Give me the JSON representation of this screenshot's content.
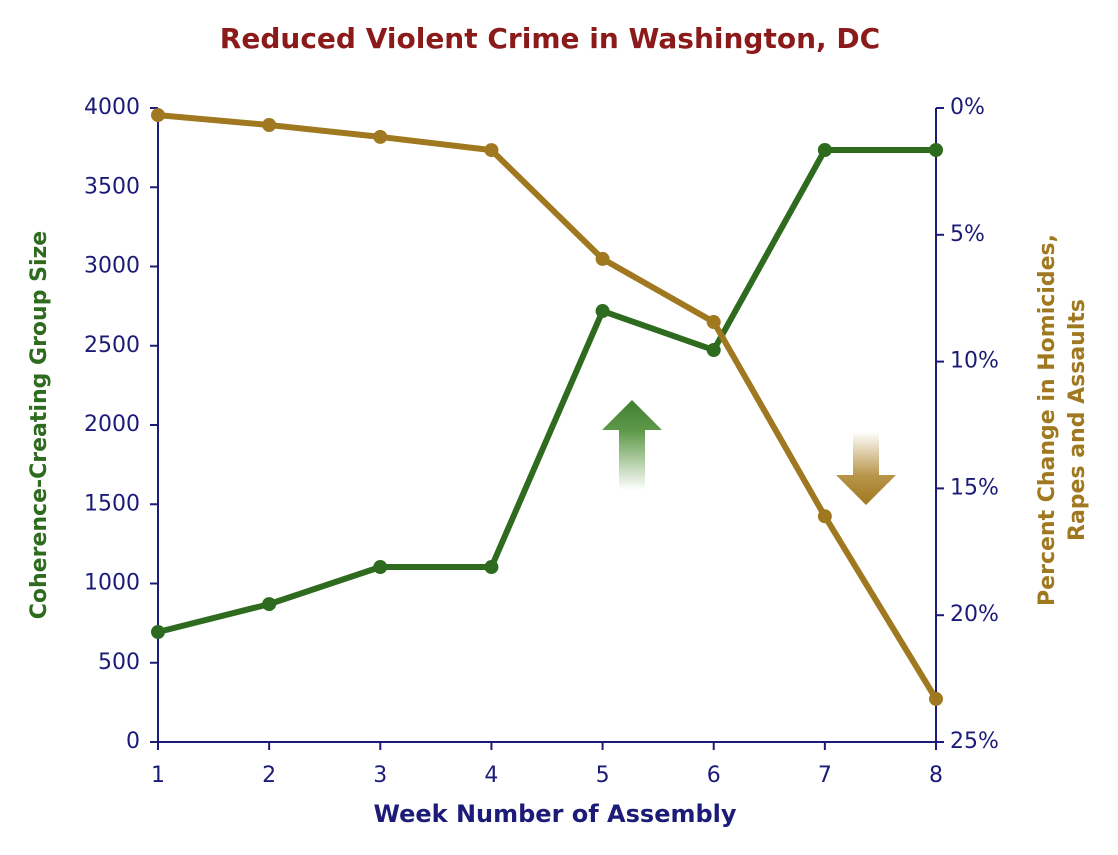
{
  "chart_data": {
    "type": "line",
    "title": "Reduced Violent Crime in Washington, DC",
    "xlabel": "Week Number of Assembly",
    "ylabel": "Coherence-Creating Group Size",
    "y2label": [
      "Percent Change in Homicides,",
      "Rapes and Assaults"
    ],
    "x": [
      1,
      2,
      3,
      4,
      5,
      6,
      7,
      8
    ],
    "xlim": [
      1,
      8
    ],
    "xticks": [
      1,
      2,
      3,
      4,
      5,
      6,
      7,
      8
    ],
    "ylim": [
      0,
      4000
    ],
    "yticks": [
      0,
      500,
      1000,
      1500,
      2000,
      2500,
      3000,
      3500,
      4000
    ],
    "y2lim": [
      25,
      0
    ],
    "y2ticks": [
      {
        "value": 0,
        "label": "0%"
      },
      {
        "value": 5,
        "label": "5%"
      },
      {
        "value": 10,
        "label": "10%"
      },
      {
        "value": 15,
        "label": "15%"
      },
      {
        "value": 20,
        "label": "20%"
      },
      {
        "value": 25,
        "label": "25%"
      }
    ],
    "grid": false,
    "series": [
      {
        "color": "#2e6b1e",
        "values": [
          694,
          870,
          1104,
          1104,
          2719,
          2473,
          3735,
          3735
        ]
      },
      {
        "color": "#a07820",
        "axis": "y2",
        "values": [
          0.28,
          0.67,
          1.14,
          1.66,
          5.95,
          8.44,
          16.1,
          23.3
        ]
      }
    ]
  }
}
